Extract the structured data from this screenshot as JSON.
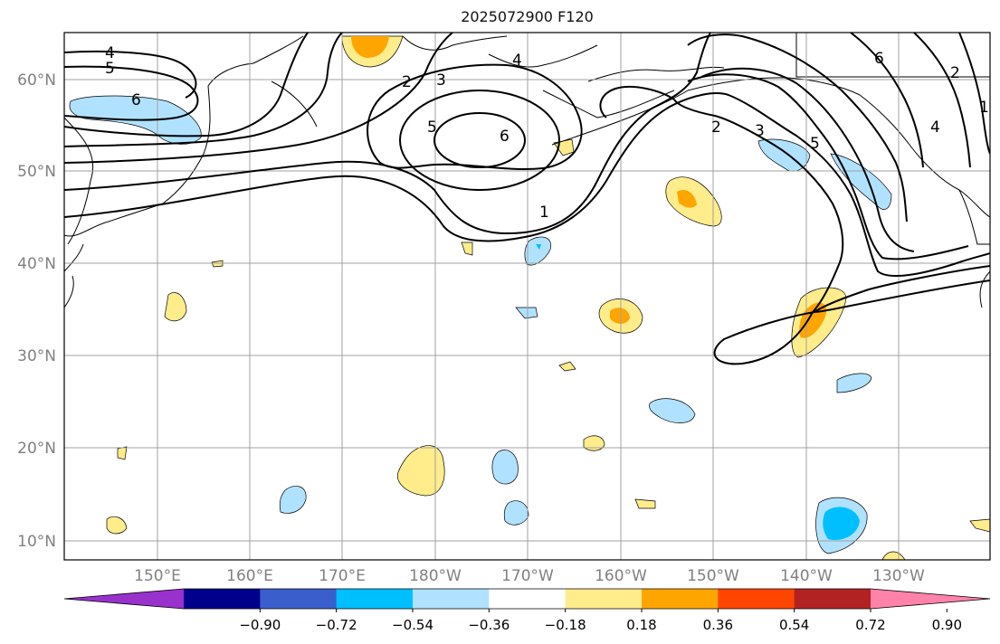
{
  "title": "2025072900 F120",
  "map": {
    "lon_labels": [
      "150°E",
      "160°E",
      "170°E",
      "180°W",
      "170°W",
      "160°W",
      "150°W",
      "140°W",
      "130°W"
    ],
    "lat_labels": [
      "60°N",
      "50°N",
      "40°N",
      "30°N",
      "20°N",
      "10°N"
    ],
    "lon_range": [
      140,
      240
    ],
    "lat_range": [
      8,
      65
    ],
    "gridlines": true
  },
  "contours": {
    "color": "#000000",
    "labels": [
      "4",
      "5",
      "6",
      "2",
      "3",
      "4",
      "5",
      "6",
      "1",
      "2",
      "3",
      "5",
      "6",
      "2",
      "4",
      "1"
    ]
  },
  "colorbar": {
    "tick_labels": [
      "−0.90",
      "−0.72",
      "−0.54",
      "−0.36",
      "−0.18",
      "0.18",
      "0.36",
      "0.54",
      "0.72",
      "0.90"
    ],
    "colors": [
      "#9932cc",
      "#00008b",
      "#3a5fcd",
      "#00bfff",
      "#b0e2ff",
      "#ffffff",
      "#ffec8b",
      "#ffa500",
      "#ff4500",
      "#b22222",
      "#ff82ab"
    ],
    "extend": "both"
  }
}
